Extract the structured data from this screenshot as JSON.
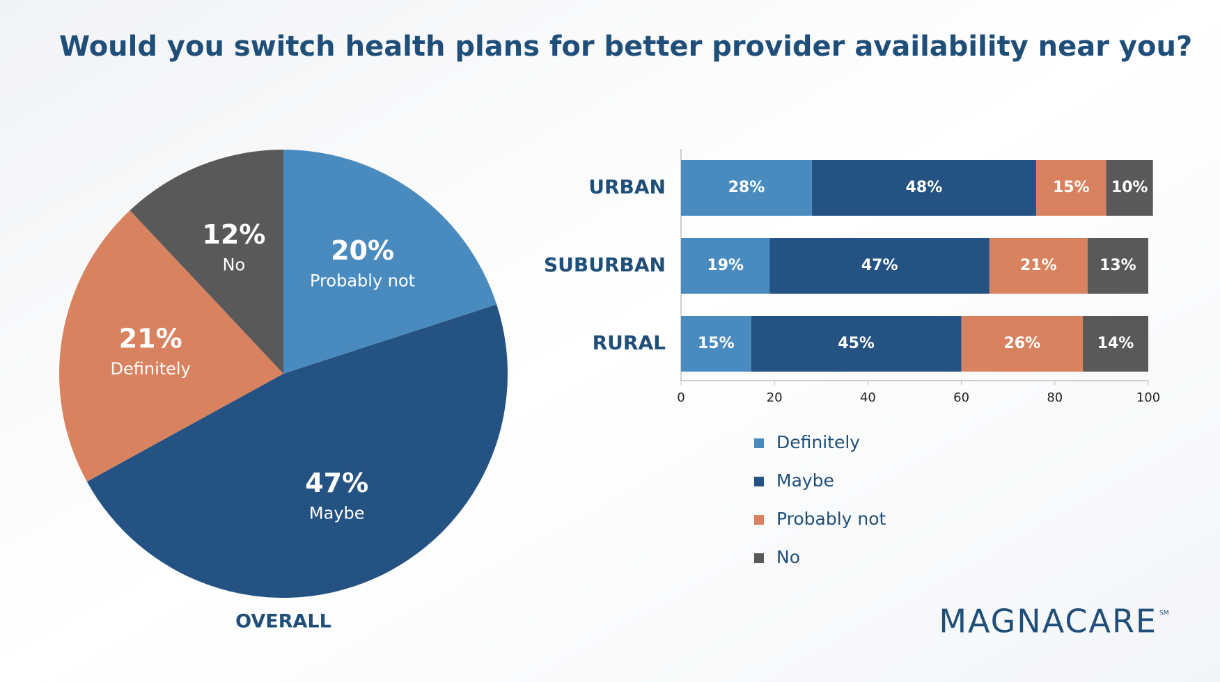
{
  "title": "Would you switch health plans for better provider availability near you?",
  "chart_data": [
    {
      "type": "pie",
      "caption": "OVERALL",
      "categories": [
        "Probably not",
        "Maybe",
        "Definitely",
        "No"
      ],
      "values": [
        20,
        47,
        21,
        12
      ],
      "value_labels": [
        "20%",
        "47%",
        "21%",
        "12%"
      ],
      "colors": [
        "#4a8bbf",
        "#245282",
        "#d9825f",
        "#595959"
      ]
    },
    {
      "type": "stacked-bar-horizontal",
      "categories": [
        "URBAN",
        "SUBURBAN",
        "RURAL"
      ],
      "series": [
        {
          "name": "Definitely",
          "color": "#4a8bbf",
          "values": [
            28,
            19,
            15
          ],
          "value_labels": [
            "28%",
            "19%",
            "15%"
          ]
        },
        {
          "name": "Maybe",
          "color": "#245282",
          "values": [
            48,
            47,
            45
          ],
          "value_labels": [
            "48%",
            "47%",
            "45%"
          ]
        },
        {
          "name": "Probably not",
          "color": "#d9825f",
          "values": [
            15,
            21,
            26
          ],
          "value_labels": [
            "15%",
            "21%",
            "26%"
          ]
        },
        {
          "name": "No",
          "color": "#595959",
          "values": [
            10,
            13,
            14
          ],
          "value_labels": [
            "10%",
            "13%",
            "14%"
          ]
        }
      ],
      "xlim": [
        0,
        100
      ],
      "xticks": [
        0,
        20,
        40,
        60,
        80,
        100
      ]
    }
  ],
  "logo": {
    "text": "MAGNACARE",
    "mark": "SM"
  }
}
